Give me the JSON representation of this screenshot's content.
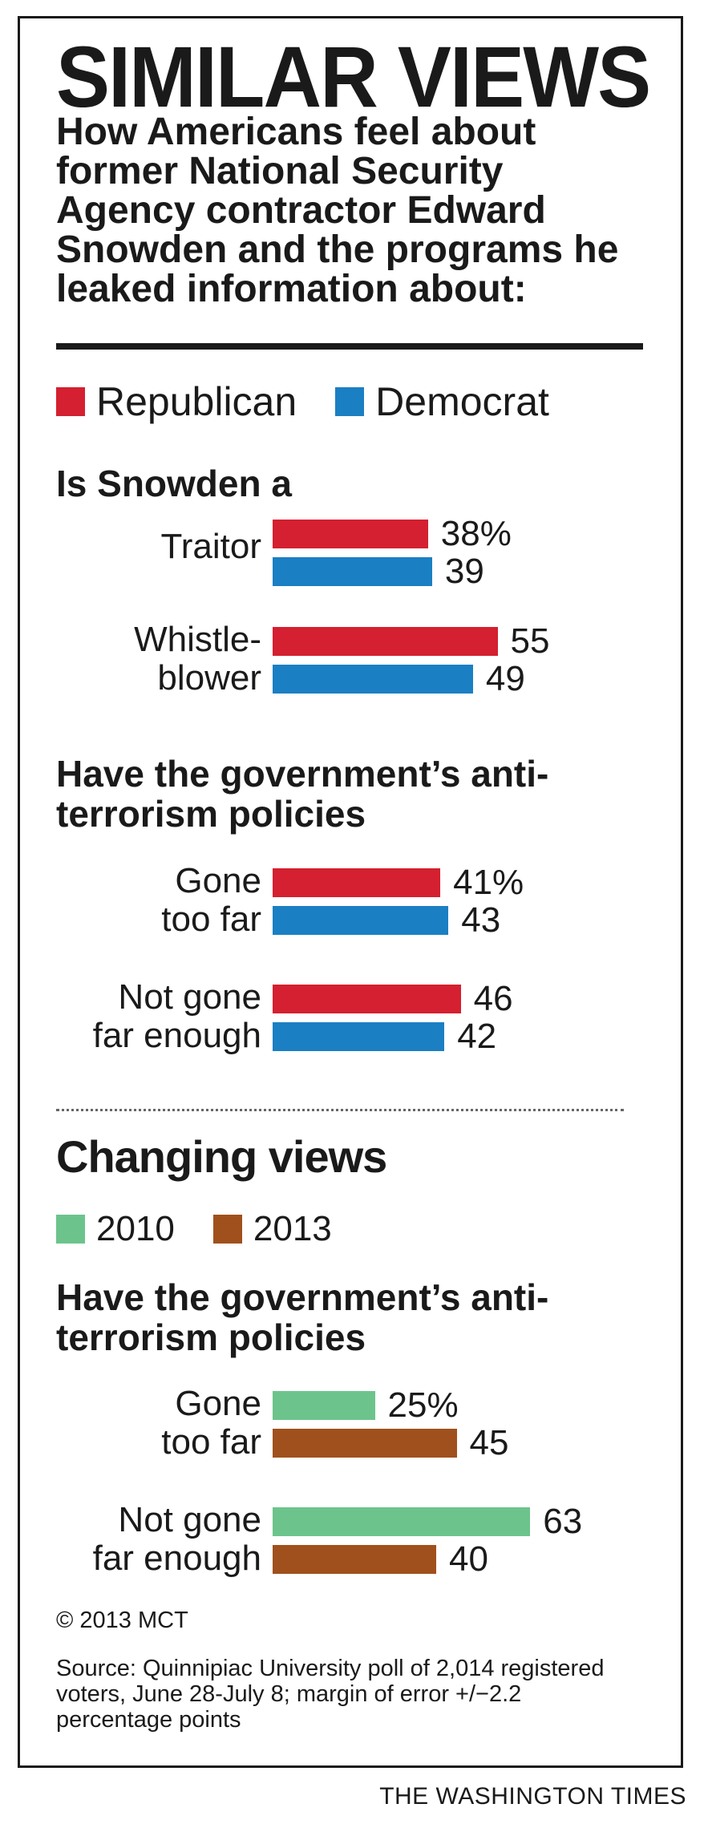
{
  "title": "SIMILAR VIEWS",
  "subtitle": "How Americans feel about former National Security Agency contractor Edward Snowden and the programs he leaked information about:",
  "legend_party": [
    {
      "label": "Republican",
      "color": "#d42030"
    },
    {
      "label": "Democrat",
      "color": "#1b7fc3"
    }
  ],
  "section_changing": "Changing views",
  "legend_year": [
    {
      "label": "2010",
      "color": "#6cc48c"
    },
    {
      "label": "2013",
      "color": "#a0501c"
    }
  ],
  "copyright": "© 2013 MCT",
  "source": "Source: Quinnipiac University poll of 2,014 registered voters, June 28-July 8; margin of error +/−2.2 percentage points",
  "credit": "THE WASHINGTON TIMES",
  "chart_data": [
    {
      "type": "bar",
      "title": "Is Snowden a",
      "categories": [
        "Traitor",
        "Whistle-blower"
      ],
      "category_lines": [
        [
          "Traitor"
        ],
        [
          "Whistle-",
          "blower"
        ]
      ],
      "series": [
        {
          "name": "Republican",
          "color": "#d42030",
          "values": [
            38,
            55
          ],
          "labels": [
            "38%",
            "55"
          ]
        },
        {
          "name": "Democrat",
          "color": "#1b7fc3",
          "values": [
            39,
            49
          ],
          "labels": [
            "39",
            "49"
          ]
        }
      ]
    },
    {
      "type": "bar",
      "title": "Have the government’s anti-terrorism policies",
      "categories": [
        "Gone too far",
        "Not gone far enough"
      ],
      "category_lines": [
        [
          "Gone",
          "too far"
        ],
        [
          "Not gone",
          "far enough"
        ]
      ],
      "series": [
        {
          "name": "Republican",
          "color": "#d42030",
          "values": [
            41,
            46
          ],
          "labels": [
            "41%",
            "46"
          ]
        },
        {
          "name": "Democrat",
          "color": "#1b7fc3",
          "values": [
            43,
            42
          ],
          "labels": [
            "43",
            "42"
          ]
        }
      ]
    },
    {
      "type": "bar",
      "title": "Have the government’s anti-terrorism policies",
      "categories": [
        "Gone too far",
        "Not gone far enough"
      ],
      "category_lines": [
        [
          "Gone",
          "too far"
        ],
        [
          "Not gone",
          "far enough"
        ]
      ],
      "series": [
        {
          "name": "2010",
          "color": "#6cc48c",
          "values": [
            25,
            63
          ],
          "labels": [
            "25%",
            "63"
          ]
        },
        {
          "name": "2013",
          "color": "#a0501c",
          "values": [
            45,
            40
          ],
          "labels": [
            "45",
            "40"
          ]
        }
      ]
    }
  ]
}
